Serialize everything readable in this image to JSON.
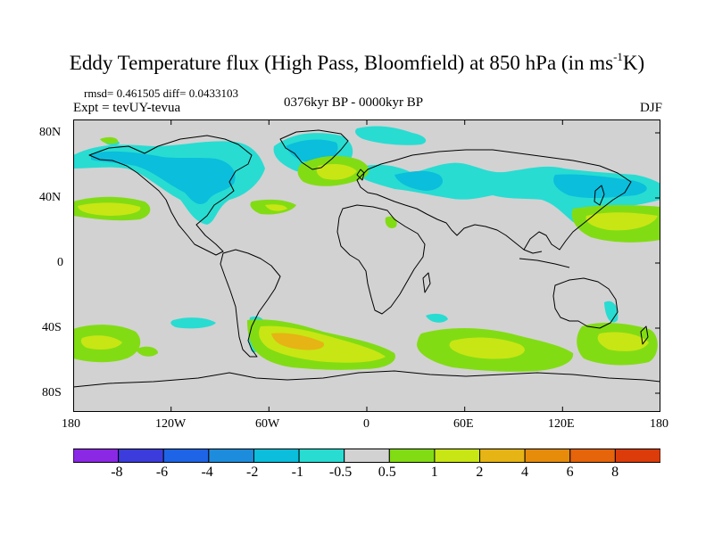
{
  "title": {
    "main": "Eddy Temperature flux (High Pass, Bloomfield) at 850 hPa (in ms",
    "sup": "-1",
    "tail": "K)"
  },
  "stats": "rmsd= 0.461505  diff= 0.0433103",
  "experiment": "Expt = tevUY-tevua",
  "period": "0376kyr BP - 0000kyr BP",
  "season": "DJF",
  "lat_labels": [
    "80N",
    "40N",
    "0",
    "40S",
    "80S"
  ],
  "lon_labels": [
    "180",
    "120W",
    "60W",
    "0",
    "60E",
    "120E",
    "180"
  ],
  "colorbar": {
    "colors": [
      "#8a28e6",
      "#3c3cdc",
      "#1e64e6",
      "#1e8cdc",
      "#0abedc",
      "#28dcd2",
      "#d2d2d2",
      "#82dc14",
      "#c8e614",
      "#e6b414",
      "#e68c0a",
      "#e6640a",
      "#dc3c0a"
    ],
    "labels": [
      "-8",
      "-6",
      "-4",
      "-2",
      "-1",
      "-0.5",
      "0.5",
      "1",
      "2",
      "4",
      "6",
      "8"
    ]
  },
  "colors": {
    "background_field": "#d2d2d2",
    "coastline": "#000000"
  }
}
